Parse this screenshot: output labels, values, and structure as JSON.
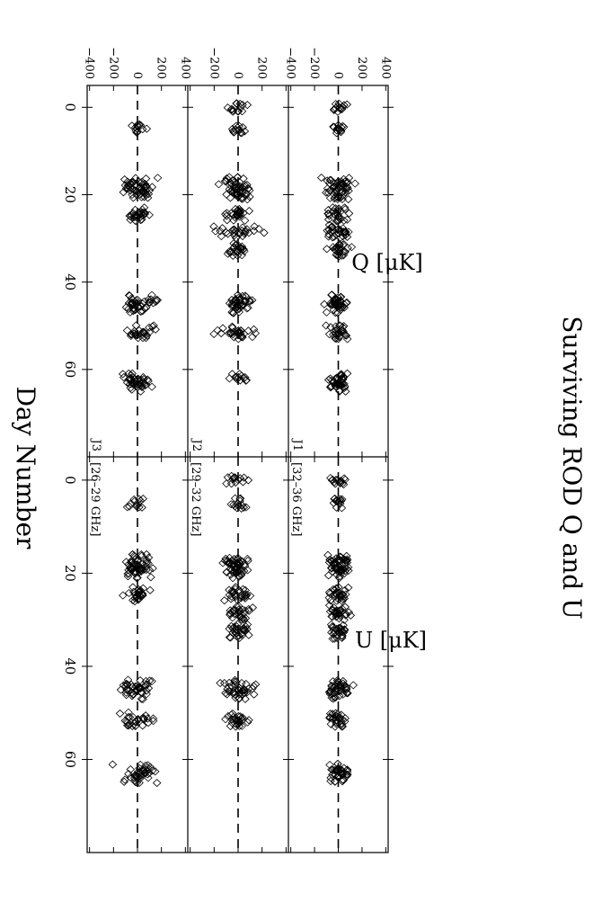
{
  "chart_data": {
    "type": "scatter",
    "title": "Surviving ROD Q and U",
    "xlabel": "Day Number",
    "ylabel_left": "Q  [μK]",
    "ylabel_right": "U  [μK]",
    "xlim": [
      -5,
      80
    ],
    "ylim": [
      -420,
      420
    ],
    "xticks": [
      "0",
      "20",
      "40",
      "60"
    ],
    "yticks": [
      "−400",
      "−200",
      "0",
      "200",
      "400"
    ],
    "zero_line": "dashed",
    "marker": "open diamond",
    "days": [
      0,
      5,
      17,
      18,
      19,
      20,
      24,
      25,
      28,
      29,
      32,
      33,
      44,
      45,
      46,
      51,
      52,
      62,
      63,
      64
    ],
    "panels": [
      {
        "id": "J1",
        "band": "[32–36 GHz]",
        "component": "Q",
        "spread": [
          110,
          90,
          190,
          160,
          120,
          150,
          130,
          120,
          180,
          140,
          140,
          120,
          160,
          140,
          130,
          150,
          120,
          140,
          110,
          120
        ]
      },
      {
        "id": "J2",
        "band": "[29–32 GHz]",
        "component": "Q",
        "spread": [
          100,
          90,
          200,
          150,
          130,
          160,
          140,
          130,
          280,
          200,
          130,
          120,
          150,
          130,
          120,
          280,
          200,
          100,
          0,
          0
        ]
      },
      {
        "id": "J3",
        "band": "[26–29 GHz]",
        "component": "Q",
        "spread": [
          0,
          90,
          260,
          200,
          190,
          170,
          130,
          110,
          0,
          0,
          0,
          0,
          250,
          210,
          190,
          230,
          150,
          260,
          180,
          150
        ]
      },
      {
        "id": "J1",
        "band": "[32–36 GHz]",
        "component": "U",
        "spread": [
          110,
          90,
          140,
          150,
          130,
          120,
          150,
          140,
          130,
          120,
          180,
          140,
          150,
          140,
          150,
          130,
          110,
          100,
          120,
          110
        ]
      },
      {
        "id": "J2",
        "band": "[29–32 GHz]",
        "component": "U",
        "spread": [
          160,
          110,
          200,
          190,
          190,
          180,
          140,
          160,
          170,
          170,
          180,
          160,
          230,
          200,
          180,
          190,
          140,
          0,
          0,
          0
        ]
      },
      {
        "id": "J3",
        "band": "[26–29 GHz]",
        "component": "U",
        "spread": [
          0,
          110,
          190,
          170,
          160,
          150,
          140,
          120,
          0,
          0,
          0,
          0,
          240,
          220,
          200,
          250,
          180,
          280,
          240,
          200
        ]
      }
    ]
  }
}
